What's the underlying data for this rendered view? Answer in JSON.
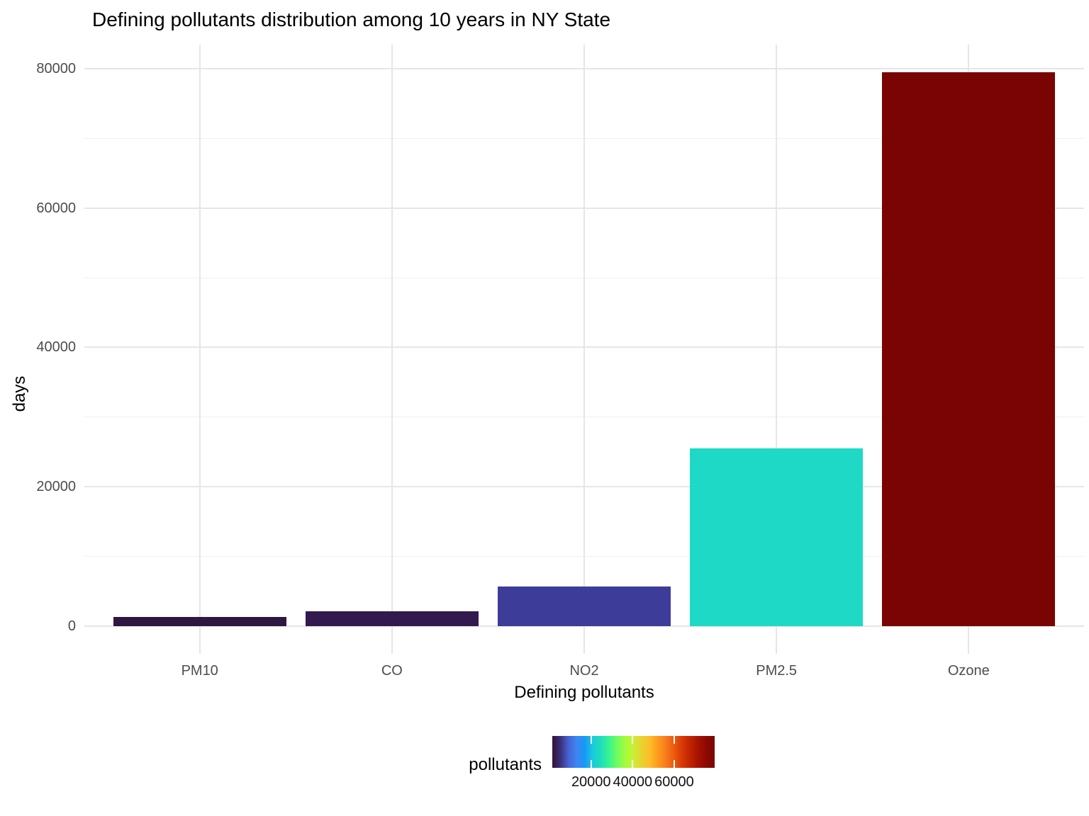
{
  "title": "Defining pollutants distribution among 10 years in NY State",
  "chart_data": {
    "type": "bar",
    "title": "Defining pollutants distribution among 10 years in NY State",
    "xlabel": "Defining pollutants",
    "ylabel": "days",
    "categories": [
      "PM10",
      "CO",
      "NO2",
      "PM2.5",
      "Ozone"
    ],
    "values": [
      1300,
      2100,
      5700,
      25500,
      79500
    ],
    "bar_colors": [
      "#2f173f",
      "#32194e",
      "#3d3d99",
      "#1ed9c6",
      "#7a0403"
    ],
    "ylim": [
      0,
      83400
    ],
    "y_major_ticks": [
      0,
      20000,
      40000,
      60000,
      80000
    ],
    "y_minor_ticks": [
      10000,
      30000,
      50000,
      70000
    ],
    "grid": "major and minor horizontal, major vertical at category centers",
    "legend": {
      "title": "pollutants",
      "type": "colorbar",
      "colormap": "turbo",
      "position": "bottom",
      "domain": [
        1300,
        79500
      ],
      "ticks": [
        20000,
        40000,
        60000
      ],
      "tick_labels": [
        "20000",
        "40000",
        "60000"
      ]
    },
    "colors": {
      "background": "#ffffff",
      "grid_major": "#e6e6e6",
      "grid_minor": "#f0f0f0",
      "tick_text": "#4d4d4d",
      "title_text": "#000000"
    }
  }
}
